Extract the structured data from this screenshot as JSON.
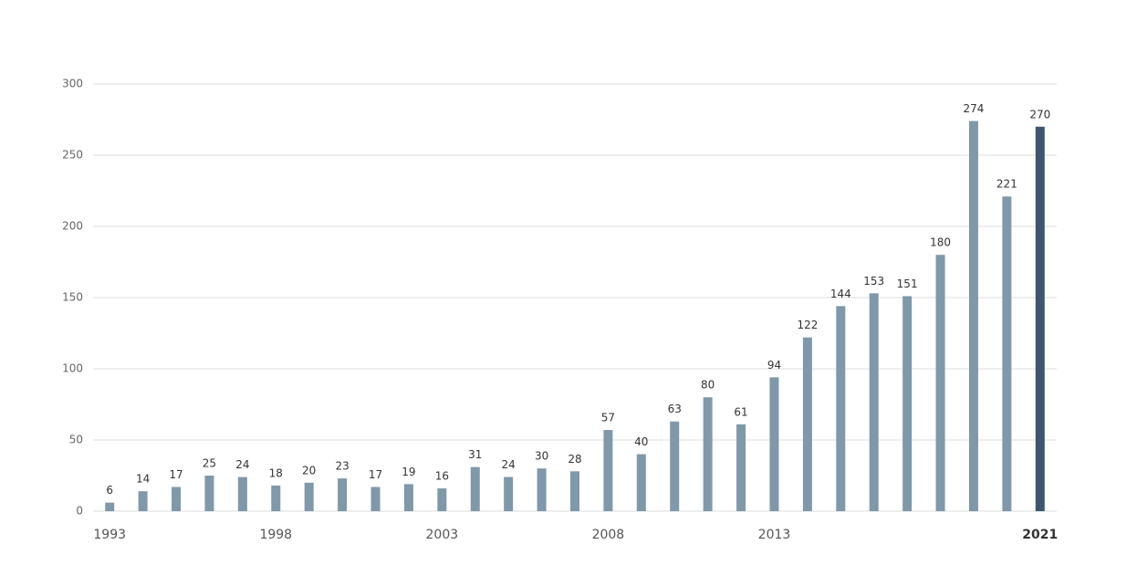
{
  "chart_data": {
    "type": "bar",
    "categories": [
      "1993",
      null,
      null,
      null,
      null,
      "1998",
      null,
      null,
      null,
      null,
      "2003",
      null,
      null,
      null,
      null,
      "2008",
      null,
      null,
      null,
      null,
      "2013",
      null,
      null,
      null,
      null,
      null,
      null,
      null,
      "2021"
    ],
    "values": [
      6,
      14,
      17,
      25,
      24,
      18,
      20,
      23,
      17,
      19,
      16,
      31,
      24,
      30,
      28,
      57,
      40,
      63,
      80,
      61,
      94,
      122,
      144,
      153,
      151,
      180,
      274,
      221,
      270
    ],
    "colors": [
      "#7f98aa",
      "#7f98aa",
      "#7f98aa",
      "#7f98aa",
      "#7f98aa",
      "#7f98aa",
      "#7f98aa",
      "#7f98aa",
      "#7f98aa",
      "#7f98aa",
      "#7f98aa",
      "#7f98aa",
      "#7f98aa",
      "#7f98aa",
      "#7f98aa",
      "#7f98aa",
      "#7f98aa",
      "#7f98aa",
      "#7f98aa",
      "#7f98aa",
      "#7f98aa",
      "#7f98aa",
      "#7f98aa",
      "#7f98aa",
      "#7f98aa",
      "#7f98aa",
      "#7f98aa",
      "#7f98aa",
      "#3e5470"
    ],
    "ylim": [
      0,
      300
    ],
    "yticks": [
      0,
      50,
      100,
      150,
      200,
      250,
      300
    ],
    "grid": true
  }
}
